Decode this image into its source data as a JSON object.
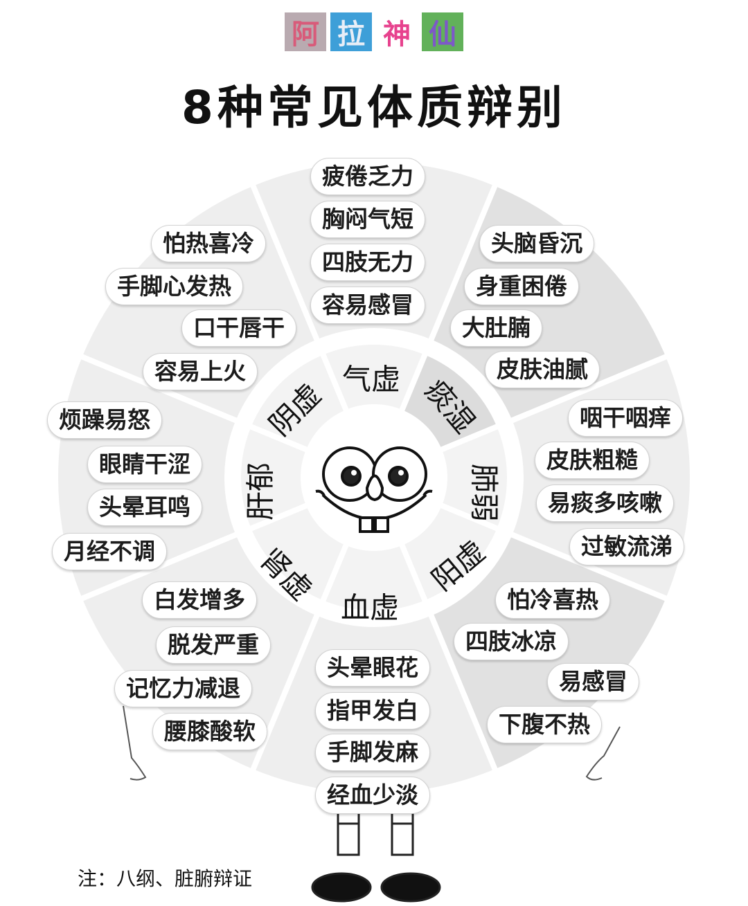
{
  "brand": {
    "chars": [
      {
        "text": "阿",
        "bg": "#b9aab0",
        "fg": "#d85b7a"
      },
      {
        "text": "拉",
        "bg": "#3e9fd8",
        "fg": "#e9eef7"
      },
      {
        "text": "神",
        "bg": "#ffffff",
        "fg": "#e7428e"
      },
      {
        "text": "仙",
        "bg": "#62b15a",
        "fg": "#7d58c8"
      }
    ]
  },
  "title": "8种常见体质辩别",
  "segments": [
    {
      "name": "气虚",
      "symptoms": [
        "疲倦乏力",
        "胸闷气短",
        "四肢无力",
        "容易感冒"
      ]
    },
    {
      "name": "痰湿",
      "symptoms": [
        "头脑昏沉",
        "身重困倦",
        "大肚腩",
        "皮肤油腻"
      ]
    },
    {
      "name": "肺弱",
      "symptoms": [
        "咽干咽痒",
        "皮肤粗糙",
        "易痰多咳嗽",
        "过敏流涕"
      ]
    },
    {
      "name": "阳虚",
      "symptoms": [
        "怕冷喜热",
        "四肢冰凉",
        "易感冒",
        "下腹不热"
      ]
    },
    {
      "name": "血虚",
      "symptoms": [
        "头晕眼花",
        "指甲发白",
        "手脚发麻",
        "经血少淡"
      ]
    },
    {
      "name": "肾虚",
      "symptoms": [
        "白发增多",
        "脱发严重",
        "记忆力减退",
        "腰膝酸软"
      ]
    },
    {
      "name": "肝郁",
      "symptoms": [
        "烦躁易怒",
        "眼睛干涩",
        "头晕耳鸣",
        "月经不调"
      ]
    },
    {
      "name": "阴虚",
      "symptoms": [
        "怕热喜冷",
        "手脚心发热",
        "口干唇干",
        "容易上火"
      ]
    }
  ],
  "note": "注：八纲、脏腑辩证",
  "colors": {
    "sector_light": "#eeeeee",
    "sector_alt": "#e1e1e1",
    "ring": "#ffffff",
    "accent_gray": "#d9d9d9"
  }
}
